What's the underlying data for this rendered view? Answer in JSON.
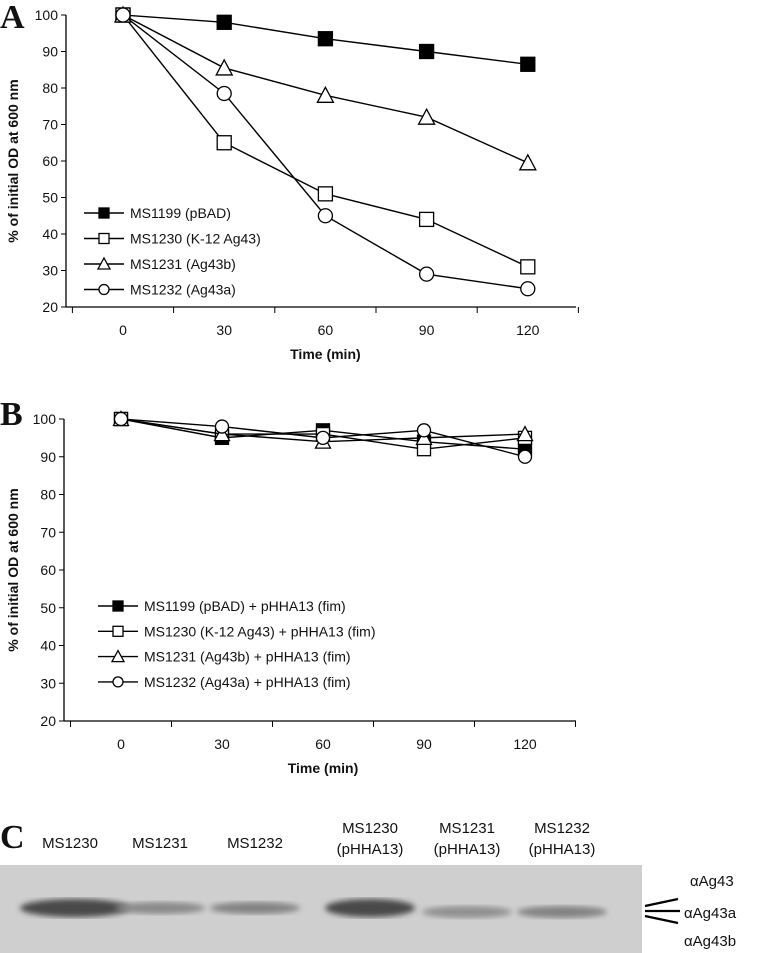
{
  "chart_data": [
    {
      "panel": "A",
      "type": "line",
      "xlabel": "Time (min)",
      "ylabel": "% of initial OD at 600 nm",
      "categories": [
        "0",
        "30",
        "60",
        "90",
        "120"
      ],
      "ylim": [
        20,
        100
      ],
      "yticks": [
        "20",
        "30",
        "40",
        "50",
        "60",
        "70",
        "80",
        "90",
        "100"
      ],
      "grid": false,
      "legend": "bottom-left",
      "series": [
        {
          "name": "MS1199 (pBAD)",
          "marker": "filled-square",
          "values": [
            100,
            98,
            93.5,
            90,
            86.5
          ]
        },
        {
          "name": "MS1230 (K-12 Ag43)",
          "marker": "open-square",
          "values": [
            100,
            65,
            51,
            44,
            31
          ]
        },
        {
          "name": "MS1231 (Ag43b)",
          "marker": "open-triangle",
          "values": [
            100,
            85.5,
            78,
            72,
            59.5
          ]
        },
        {
          "name": "MS1232 (Ag43a)",
          "marker": "open-circle",
          "values": [
            100,
            78.5,
            45,
            29,
            25
          ]
        }
      ]
    },
    {
      "panel": "B",
      "type": "line",
      "xlabel": "Time (min)",
      "ylabel": "% of initial OD at 600 nm",
      "categories": [
        "0",
        "30",
        "60",
        "90",
        "120"
      ],
      "ylim": [
        20,
        100
      ],
      "yticks": [
        "20",
        "30",
        "40",
        "50",
        "60",
        "70",
        "80",
        "90",
        "100"
      ],
      "grid": false,
      "legend": "bottom-left",
      "series": [
        {
          "name": "MS1199 (pBAD) + pHHA13 (fim)",
          "marker": "filled-square",
          "values": [
            100,
            95,
            97,
            94,
            92
          ]
        },
        {
          "name": "MS1230 (K-12 Ag43) + pHHA13 (fim)",
          "marker": "open-square",
          "values": [
            100,
            96,
            96,
            92,
            95
          ]
        },
        {
          "name": "MS1231 (Ag43b) + pHHA13 (fim)",
          "marker": "open-triangle",
          "values": [
            100,
            96,
            94,
            95,
            96
          ]
        },
        {
          "name": "MS1232 (Ag43a) + pHHA13 (fim)",
          "marker": "open-circle",
          "values": [
            100,
            98,
            95,
            97,
            90
          ]
        }
      ]
    }
  ],
  "blot": {
    "panel": "C",
    "lanes": [
      {
        "line1": "MS1230",
        "line2": "",
        "intensity": 0.9
      },
      {
        "line1": "MS1231",
        "line2": "",
        "intensity": 0.45
      },
      {
        "line1": "MS1232",
        "line2": "",
        "intensity": 0.5
      },
      {
        "line1": "MS1230",
        "line2": "(pHHA13)",
        "intensity": 0.9
      },
      {
        "line1": "MS1231",
        "line2": "(pHHA13)",
        "intensity": 0.4
      },
      {
        "line1": "MS1232",
        "line2": "(pHHA13)",
        "intensity": 0.5
      }
    ],
    "band_labels": [
      "αAg43",
      "αAg43a",
      "αAg43b"
    ],
    "background_color": "#cfcfcf"
  }
}
